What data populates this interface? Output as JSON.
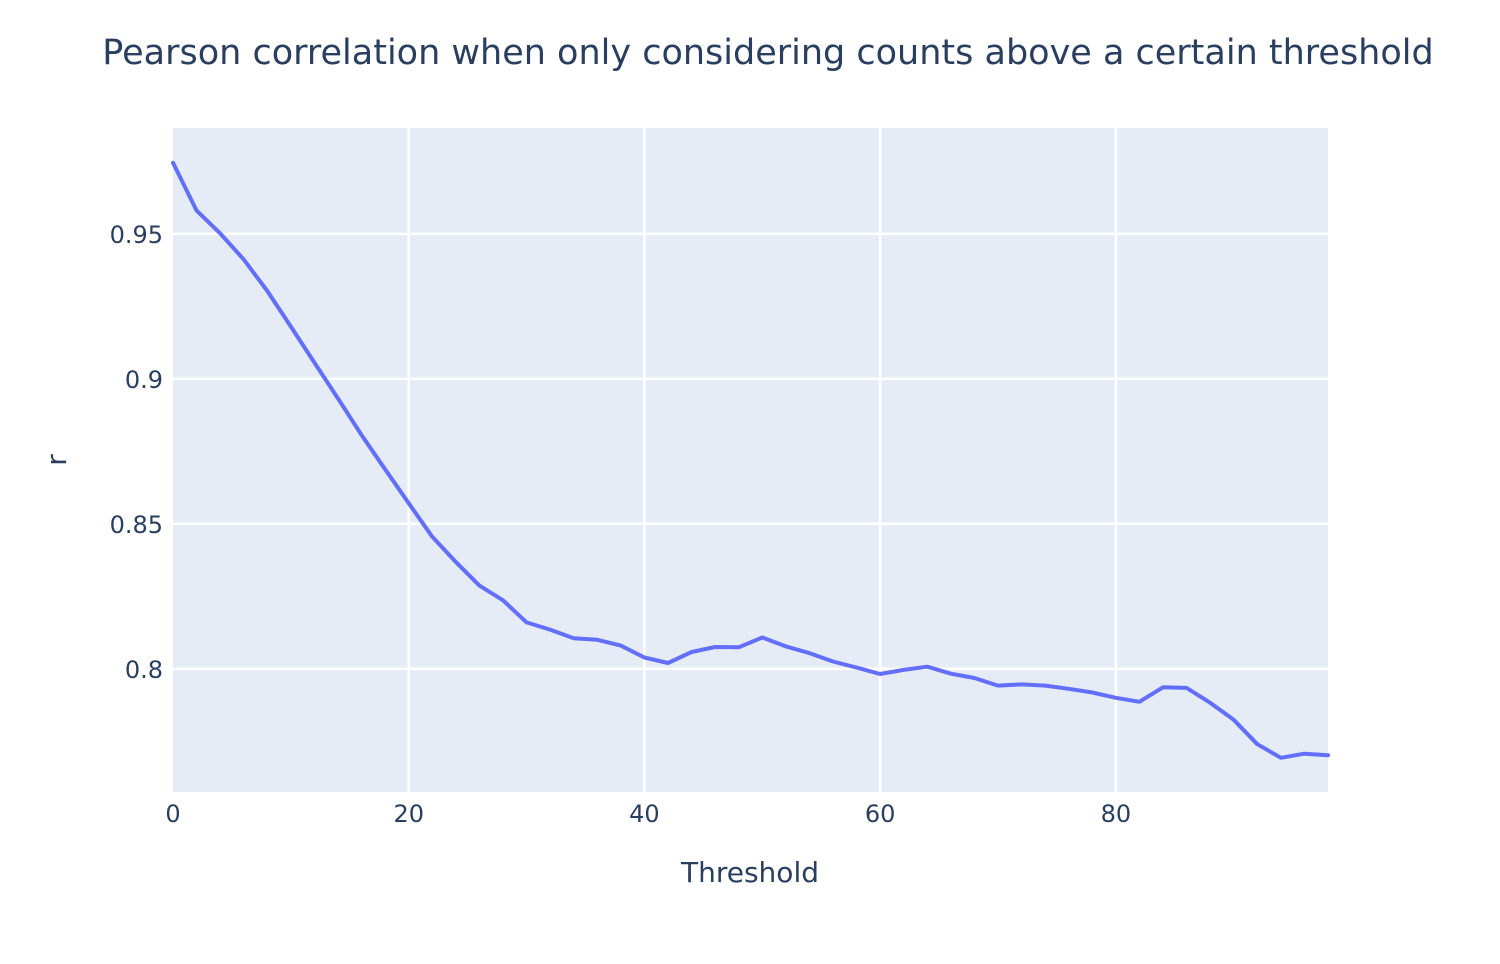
{
  "chart_data": {
    "type": "line",
    "title": "Pearson correlation when only considering counts above a certain threshold",
    "xlabel": "Threshold",
    "ylabel": "r",
    "xlim": [
      0,
      98
    ],
    "ylim": [
      0.7575,
      0.9865
    ],
    "grid": true,
    "legend": "none",
    "x_ticks": [
      0,
      20,
      40,
      60,
      80
    ],
    "x_tick_labels": [
      "0",
      "20",
      "40",
      "60",
      "80"
    ],
    "y_ticks": [
      0.8,
      0.85,
      0.9,
      0.95
    ],
    "y_tick_labels": [
      "0.8",
      "0.85",
      "0.9",
      "0.95"
    ],
    "colors": {
      "plot_background": "#e5ecf6",
      "grid": "#ffffff",
      "text": "#2a3f5f",
      "line": "#636efa"
    },
    "series": [
      {
        "x": [
          0,
          2,
          4,
          6,
          8,
          10,
          12,
          14,
          16,
          18,
          20,
          22,
          24,
          26,
          28,
          30,
          32,
          34,
          36,
          38,
          40,
          42,
          44,
          46,
          48,
          50,
          52,
          54,
          56,
          58,
          60,
          62,
          64,
          66,
          68,
          70,
          72,
          74,
          76,
          78,
          80,
          82,
          84,
          86,
          88,
          90,
          92,
          94,
          96,
          98
        ],
        "y": [
          0.9745,
          0.958,
          0.9502,
          0.9412,
          0.9303,
          0.918,
          0.9056,
          0.8932,
          0.8806,
          0.8688,
          0.8571,
          0.8455,
          0.8368,
          0.8287,
          0.8236,
          0.816,
          0.8135,
          0.8105,
          0.81,
          0.808,
          0.8039,
          0.802,
          0.8058,
          0.8075,
          0.8074,
          0.8108,
          0.8077,
          0.8054,
          0.8025,
          0.8004,
          0.7982,
          0.7996,
          0.8007,
          0.7983,
          0.7968,
          0.7942,
          0.7946,
          0.7942,
          0.7931,
          0.7918,
          0.79,
          0.7886,
          0.7936,
          0.7934,
          0.7883,
          0.7824,
          0.774,
          0.7693,
          0.7707,
          0.7702
        ]
      }
    ]
  }
}
